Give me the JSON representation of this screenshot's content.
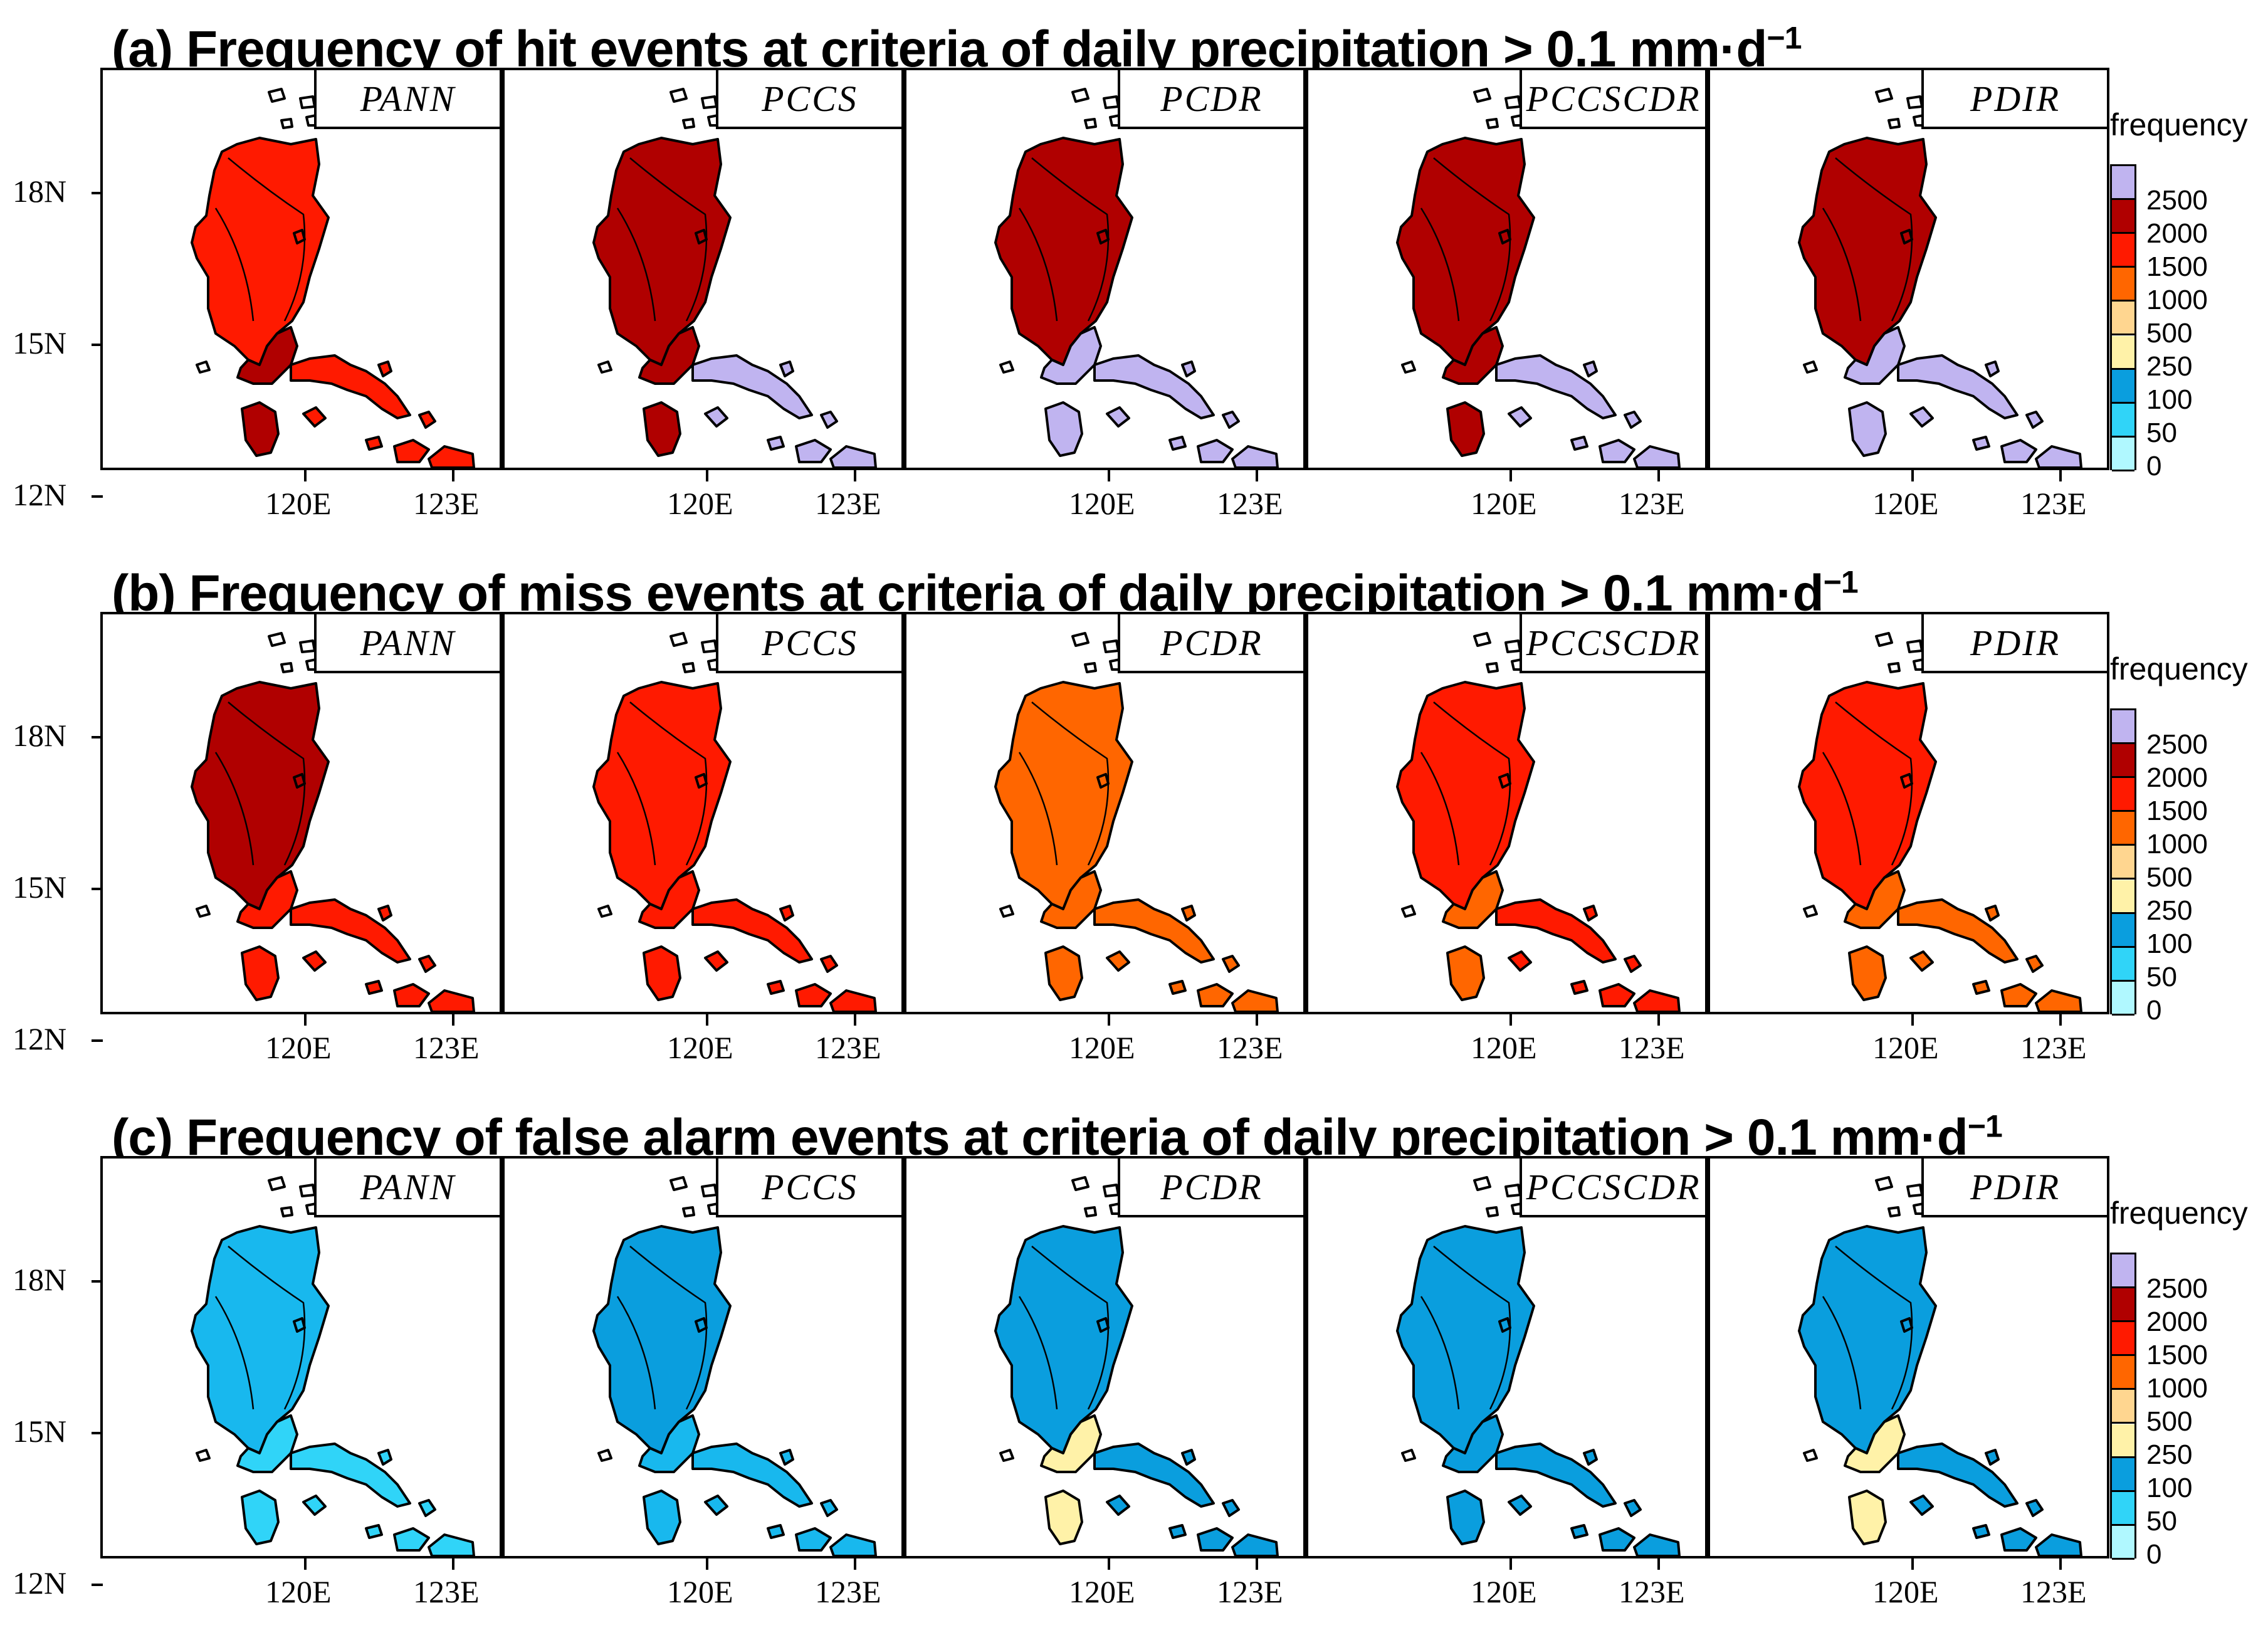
{
  "rows": [
    {
      "id": "a",
      "title": "(a) Frequency of hit events at criteria of daily precipitation > 0.1 mm·d",
      "sup": "−1",
      "panels": [
        {
          "label": "PANN",
          "north": "#ff1a00",
          "south": "#b00000",
          "east": "#ff1a00"
        },
        {
          "label": "PCCS",
          "north": "#b00000",
          "south": "#b00000",
          "east": "#c0b4f0"
        },
        {
          "label": "PCDR",
          "north": "#b00000",
          "south": "#c0b4f0",
          "east": "#c0b4f0"
        },
        {
          "label": "PCCSCDR",
          "north": "#b00000",
          "south": "#b00000",
          "east": "#c0b4f0"
        },
        {
          "label": "PDIR",
          "north": "#b00000",
          "south": "#c0b4f0",
          "east": "#c0b4f0"
        }
      ]
    },
    {
      "id": "b",
      "title": "(b) Frequency of miss events at criteria of daily precipitation > 0.1 mm·d",
      "sup": "−1",
      "panels": [
        {
          "label": "PANN",
          "north": "#b00000",
          "south": "#ff1a00",
          "east": "#ff1a00"
        },
        {
          "label": "PCCS",
          "north": "#ff1a00",
          "south": "#ff1a00",
          "east": "#ff1a00"
        },
        {
          "label": "PCDR",
          "north": "#ff6600",
          "south": "#ff6600",
          "east": "#ff6600"
        },
        {
          "label": "PCCSCDR",
          "north": "#ff1a00",
          "south": "#ff6600",
          "east": "#ff1a00"
        },
        {
          "label": "PDIR",
          "north": "#ff1a00",
          "south": "#ff6600",
          "east": "#ff6600"
        }
      ]
    },
    {
      "id": "c",
      "title": "(c) Frequency of false alarm events at criteria of daily precipitation > 0.1 mm·d",
      "sup": "−1",
      "panels": [
        {
          "label": "PANN",
          "north": "#18b8ee",
          "south": "#30d4f8",
          "east": "#30d4f8"
        },
        {
          "label": "PCCS",
          "north": "#0a9ede",
          "south": "#18b8ee",
          "east": "#18b8ee"
        },
        {
          "label": "PCDR",
          "north": "#0a9ede",
          "south": "#fff2a8",
          "east": "#0a9ede"
        },
        {
          "label": "PCCSCDR",
          "north": "#0a9ede",
          "south": "#0a9ede",
          "east": "#0a9ede"
        },
        {
          "label": "PDIR",
          "north": "#0a9ede",
          "south": "#fff2a8",
          "east": "#0a9ede"
        }
      ]
    }
  ],
  "axes": {
    "y_labels": [
      "18N",
      "15N",
      "12N"
    ],
    "x_labels": [
      "120E",
      "123E"
    ]
  },
  "colorbar": {
    "title": "frequency",
    "levels": [
      "2500",
      "2000",
      "1500",
      "1000",
      "500",
      "250",
      "100",
      "50",
      "0"
    ],
    "colors": [
      "#c0b4f0",
      "#b00000",
      "#ff1a00",
      "#ff6600",
      "#ffd690",
      "#fff2a8",
      "#0a9ede",
      "#30d4f8",
      "#b0f8ff",
      "#ffffff"
    ]
  }
}
